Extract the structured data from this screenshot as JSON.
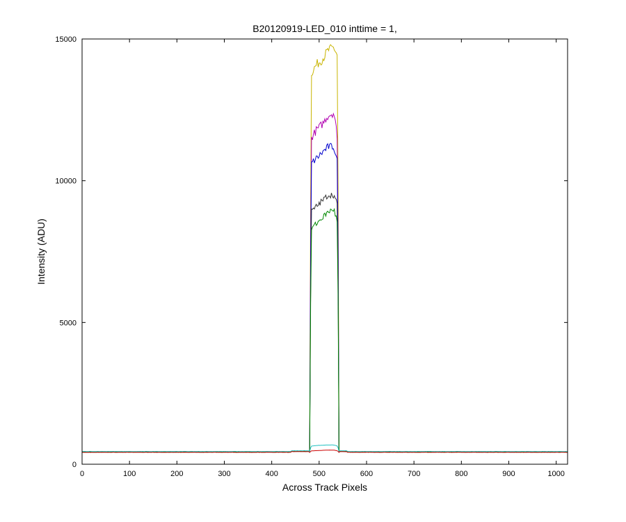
{
  "chart_data": {
    "type": "line",
    "title": "B20120919-LED_010 inttime = 1,",
    "xlabel": "Across Track Pixels",
    "ylabel": "Intensity (ADU)",
    "xlim": [
      0,
      1024
    ],
    "ylim": [
      0,
      15000
    ],
    "xticks": [
      0,
      100,
      200,
      300,
      400,
      500,
      600,
      700,
      800,
      900,
      1000
    ],
    "yticks": [
      0,
      5000,
      10000,
      15000
    ],
    "grid": false,
    "legend": "none",
    "series_shape": {
      "x": [
        0,
        380,
        470,
        478,
        480,
        484,
        487,
        500,
        515,
        525,
        535,
        539,
        541,
        543,
        548,
        560,
        1024
      ],
      "baseline_note_index": 0
    },
    "series": [
      {
        "color": "#c8b400",
        "baseline": 430,
        "plateau": [
          13800,
          14100,
          14300,
          14600,
          14700,
          14400
        ]
      },
      {
        "color": "#b000b0",
        "baseline": 430,
        "plateau": [
          11500,
          11800,
          12000,
          12300,
          12400,
          11500
        ]
      },
      {
        "color": "#0000cc",
        "baseline": 430,
        "plateau": [
          10600,
          10800,
          11000,
          11200,
          11200,
          10600
        ]
      },
      {
        "color": "#333333",
        "baseline": 430,
        "plateau": [
          8900,
          9100,
          9300,
          9500,
          9500,
          9100
        ]
      },
      {
        "color": "#008800",
        "baseline": 430,
        "plateau": [
          8300,
          8500,
          8700,
          8900,
          9000,
          8500
        ]
      },
      {
        "color": "#20c0c0",
        "baseline": 450,
        "plateau": [
          640,
          660,
          670,
          680,
          680,
          640
        ]
      },
      {
        "color": "#cc0000",
        "baseline": 420,
        "plateau": [
          470,
          480,
          490,
          500,
          500,
          470
        ]
      }
    ]
  }
}
